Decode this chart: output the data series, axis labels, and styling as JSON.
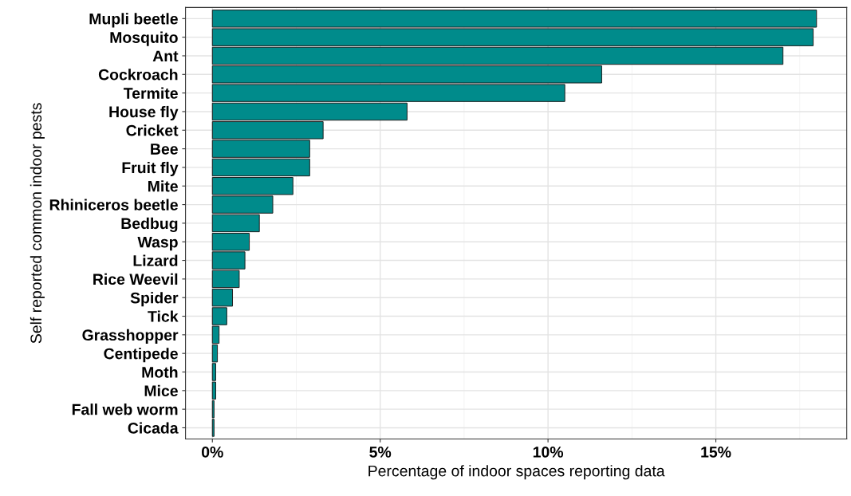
{
  "chart_data": {
    "type": "bar",
    "orientation": "horizontal",
    "xlabel": "Percentage of indoor spaces reporting data",
    "ylabel": "Self reported common indoor pests",
    "categories": [
      "Mupli beetle",
      "Mosquito",
      "Ant",
      "Cockroach",
      "Termite",
      "House fly",
      "Cricket",
      "Bee",
      "Fruit fly",
      "Mite",
      "Rhiniceros beetle",
      "Bedbug",
      "Wasp",
      "Lizard",
      "Rice Weevil",
      "Spider",
      "Tick",
      "Grasshopper",
      "Centipede",
      "Moth",
      "Mice",
      "Fall web worm",
      "Cicada"
    ],
    "values": [
      18.0,
      17.9,
      17.0,
      11.6,
      10.5,
      5.8,
      3.3,
      2.9,
      2.9,
      2.4,
      1.8,
      1.4,
      1.1,
      0.97,
      0.8,
      0.6,
      0.43,
      0.2,
      0.15,
      0.1,
      0.1,
      0.05,
      0.05
    ],
    "color": "#008b8b",
    "xlim": [
      -0.8,
      18.9
    ],
    "xticks": [
      {
        "value": 0,
        "label": "0%"
      },
      {
        "value": 5,
        "label": "5%"
      },
      {
        "value": 10,
        "label": "10%"
      },
      {
        "value": 15,
        "label": "15%"
      }
    ],
    "grid": true
  }
}
